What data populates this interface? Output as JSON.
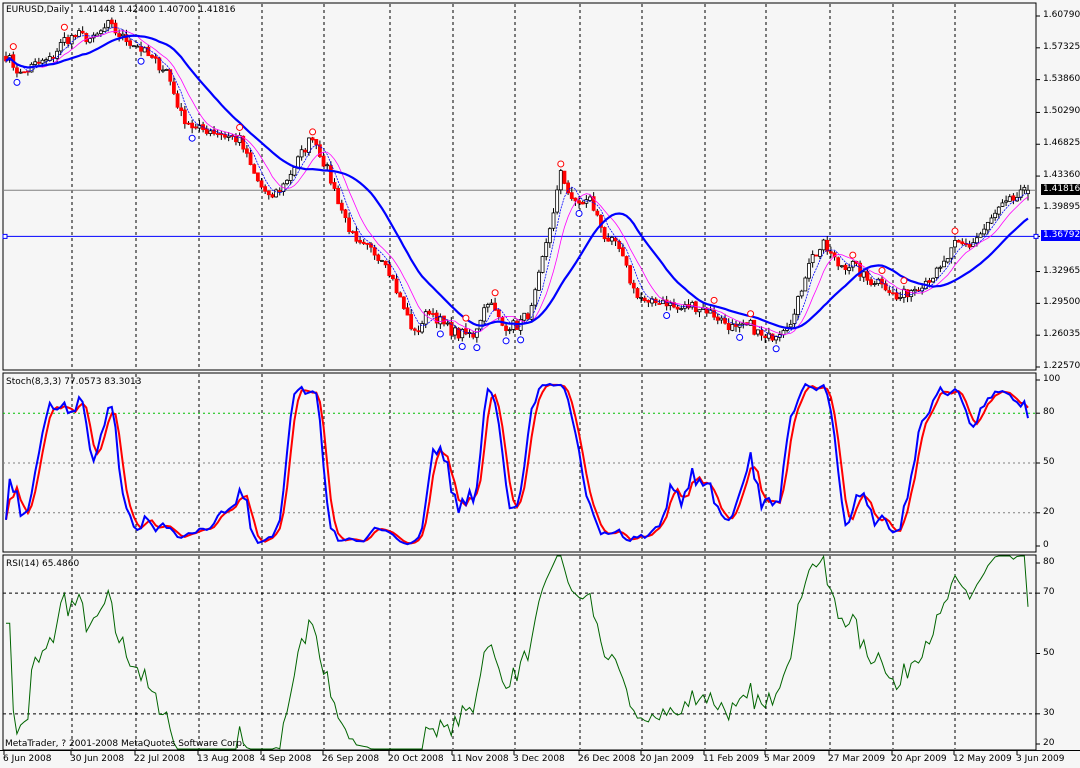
{
  "window": {
    "symbol_header": "EURUSD,Daily",
    "ohlc": [
      "1.41448",
      "1.42400",
      "1.40700",
      "1.41816"
    ],
    "stoch_header": "Stoch(8,3,3)",
    "stoch_values": [
      "77.0573",
      "83.3013"
    ],
    "rsi_header": "RSI(14)",
    "rsi_value": "65.4860",
    "copyright": "MetaTrader, ? 2001-2008 MetaQuotes Software Corp."
  },
  "colors": {
    "background": "#f6f6f6",
    "bull_candle": "#ffffff",
    "bear_candle": "#ff0000",
    "ma_slow": "#0000ff",
    "ma_fast": "#ff00ff",
    "stoch_main": "#0000ff",
    "stoch_signal": "#ff0000",
    "rsi": "#006400",
    "level_line": "#0000ff",
    "bid_line": "#808080"
  },
  "chart_data": [
    {
      "type": "candlestick",
      "title": "EURUSD,Daily",
      "y_ticks": [
        "1.60790",
        "1.57325",
        "1.53860",
        "1.50290",
        "1.46825",
        "1.43360",
        "1.39895",
        "1.36792",
        "1.32965",
        "1.29500",
        "1.26035",
        "1.22570"
      ],
      "ylim": [
        1.2257,
        1.6079
      ],
      "current_price": "1.41816",
      "horizontal_line": "1.36792",
      "x_ticks": [
        "6 Jun 2008",
        "30 Jun 2008",
        "22 Jul 2008",
        "13 Aug 2008",
        "4 Sep 2008",
        "26 Sep 2008",
        "20 Oct 2008",
        "11 Nov 2008",
        "3 Dec 2008",
        "26 Dec 2008",
        "20 Jan 2009",
        "11 Feb 2009",
        "5 Mar 2009",
        "27 Mar 2009",
        "20 Apr 2009",
        "12 May 2009",
        "3 Jun 2009"
      ],
      "close_sampled_every_4_bars": [
        1.565,
        1.544,
        1.555,
        1.56,
        1.582,
        1.587,
        1.582,
        1.598,
        1.584,
        1.576,
        1.56,
        1.549,
        1.5,
        1.484,
        1.484,
        1.478,
        1.473,
        1.435,
        1.408,
        1.424,
        1.451,
        1.478,
        1.44,
        1.397,
        1.358,
        1.353,
        1.342,
        1.299,
        1.261,
        1.288,
        1.271,
        1.261,
        1.261,
        1.299,
        1.271,
        1.271,
        1.288,
        1.358,
        1.435,
        1.402,
        1.408,
        1.369,
        1.353,
        1.31,
        1.293,
        1.299,
        1.288,
        1.293,
        1.288,
        1.277,
        1.266,
        1.271,
        1.255,
        1.266,
        1.282,
        1.342,
        1.358,
        1.337,
        1.337,
        1.32,
        1.32,
        1.299,
        1.31,
        1.32,
        1.331,
        1.358,
        1.358,
        1.375,
        1.397,
        1.408,
        1.418
      ],
      "last_bar": {
        "open": 1.41448,
        "high": 1.424,
        "low": 1.407,
        "close": 1.41816
      }
    },
    {
      "type": "line",
      "title": "Stoch(8,3,3)",
      "y_ticks": [
        "100",
        "80",
        "50",
        "20",
        "0"
      ],
      "ylim": [
        0,
        100
      ],
      "levels": [
        80,
        50,
        20
      ],
      "last_values": {
        "main": 77.0573,
        "signal": 83.3013
      }
    },
    {
      "type": "line",
      "title": "RSI(14)",
      "y_ticks": [
        "80",
        "70",
        "50",
        "30",
        "20"
      ],
      "ylim": [
        18,
        82
      ],
      "levels": [
        70,
        30
      ],
      "last_value": 65.486
    }
  ]
}
